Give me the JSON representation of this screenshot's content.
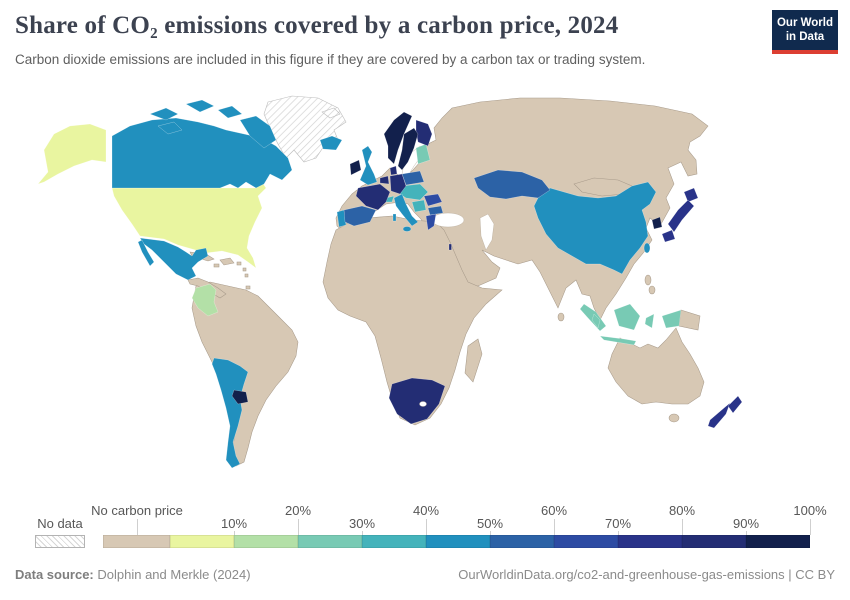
{
  "header": {
    "title": "Share of CO₂ emissions covered by a carbon price, 2024",
    "subtitle": "Carbon dioxide emissions are included in this figure if they are covered by a carbon tax or trading system.",
    "logo": {
      "line1": "Our World",
      "line2": "in Data",
      "bg_color": "#102a4e",
      "accent_color": "#dc3e32"
    }
  },
  "legend": {
    "no_data": {
      "label": "No data"
    },
    "no_carbon_price": {
      "label": "No carbon price",
      "color": "#d7c8b4"
    },
    "tick_labels": [
      "10%",
      "20%",
      "30%",
      "40%",
      "50%",
      "60%",
      "70%",
      "80%",
      "90%",
      "100%"
    ],
    "bins": [
      {
        "label": "0-10%",
        "color": "#e9f5a0"
      },
      {
        "label": "10-20%",
        "color": "#b3e0a7"
      },
      {
        "label": "20-30%",
        "color": "#78cab4"
      },
      {
        "label": "30-40%",
        "color": "#44b3bb"
      },
      {
        "label": "40-50%",
        "color": "#2190be"
      },
      {
        "label": "50-60%",
        "color": "#2c62a6"
      },
      {
        "label": "60-70%",
        "color": "#2d4ba3"
      },
      {
        "label": "70-80%",
        "color": "#293389"
      },
      {
        "label": "80-90%",
        "color": "#232d74"
      },
      {
        "label": "90-100%",
        "color": "#12204c"
      }
    ]
  },
  "footer": {
    "source_label": "Data source:",
    "source": "Dolphin and Merkle (2024)",
    "attribution": "OurWorldinData.org/co2-and-greenhouse-gas-emissions | CC BY"
  },
  "chart_data": {
    "type": "choropleth",
    "subtype": "world-map",
    "title": "Share of CO₂ emissions covered by a carbon price, 2024",
    "unit": "share of CO₂ emissions covered by a carbon tax or trading system",
    "year": 2024,
    "legend_position": "bottom",
    "bins": [
      "No data",
      "No carbon price",
      "0-10%",
      "10-20%",
      "20-30%",
      "30-40%",
      "40-50%",
      "50-60%",
      "60-70%",
      "70-80%",
      "80-90%",
      "90-100%"
    ],
    "regions_by_bin": {
      "No data": [
        "Greenland",
        "Svalbard"
      ],
      "No carbon price": [
        "Russia",
        "Brazil",
        "India",
        "Australia",
        "Saudi Arabia",
        "Iran",
        "Iraq",
        "Turkey",
        "Egypt",
        "Libya",
        "Algeria",
        "Morocco",
        "Nigeria",
        "Ethiopia",
        "Kenya",
        "DR Congo",
        "Angola",
        "Mozambique",
        "Madagascar",
        "Venezuela",
        "Peru",
        "Bolivia",
        "Paraguay",
        "Ecuador",
        "Cuba",
        "Guatemala",
        "Honduras",
        "Nicaragua",
        "Panama",
        "Belarus",
        "Ukraine",
        "Mongolia",
        "North Korea",
        "Pakistan",
        "Afghanistan",
        "Uzbekistan",
        "Turkmenistan",
        "Myanmar",
        "Thailand",
        "Vietnam",
        "Laos",
        "Cambodia",
        "Philippines",
        "Papua New Guinea",
        "Sri Lanka"
      ],
      "0-10%": [
        "United States"
      ],
      "10-20%": [
        "Colombia"
      ],
      "20-30%": [
        "Indonesia",
        "Malaysia",
        "Estonia",
        "Latvia"
      ],
      "30-40%": [
        "Austria",
        "Czechia",
        "Slovakia",
        "Hungary",
        "Switzerland",
        "Croatia",
        "Slovenia"
      ],
      "40-50%": [
        "Canada",
        "Mexico",
        "United Kingdom",
        "Iceland",
        "Portugal",
        "Italy",
        "Argentina",
        "Chile",
        "China",
        "Taiwan"
      ],
      "50-60%": [
        "Spain",
        "Poland",
        "Kazakhstan",
        "Bulgaria"
      ],
      "60-70%": [
        "Romania",
        "Greece"
      ],
      "70-80%": [
        "Japan",
        "New Zealand"
      ],
      "80-90%": [
        "France",
        "Germany",
        "Denmark",
        "Belgium",
        "Netherlands",
        "Finland",
        "South Africa",
        "Israel"
      ],
      "90-100%": [
        "Norway",
        "Sweden",
        "Ireland",
        "South Korea",
        "Uruguay"
      ]
    }
  }
}
